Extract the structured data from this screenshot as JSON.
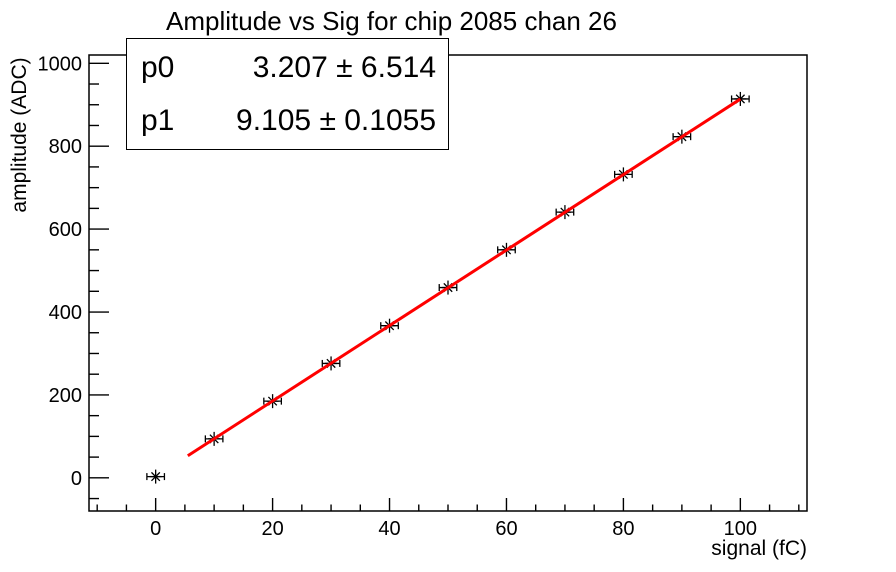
{
  "title": "Amplitude vs Sig for chip 2085 chan 26",
  "stats_box": {
    "rows": [
      {
        "label": "p0",
        "value": "3.207 ± 6.514"
      },
      {
        "label": "p1",
        "value": "9.105 ± 0.1055"
      }
    ]
  },
  "chart_data": {
    "type": "scatter",
    "title": "Amplitude vs Sig for chip 2085 chan 26",
    "xlabel": "signal (fC)",
    "ylabel": "amplitude (ADC)",
    "xlim": [
      -11.4,
      111.4
    ],
    "ylim": [
      -80,
      1020
    ],
    "x": [
      0,
      10,
      20,
      30,
      40,
      50,
      60,
      70,
      80,
      90,
      100
    ],
    "y": [
      3,
      94,
      185,
      276,
      367,
      459,
      550,
      641,
      732,
      823,
      914
    ],
    "x_error": 1.5,
    "x_major_ticks": [
      0,
      20,
      40,
      60,
      80,
      100
    ],
    "x_minor_step": 5,
    "y_major_ticks": [
      0,
      200,
      400,
      600,
      800,
      1000
    ],
    "y_minor_step": 50,
    "grid": false,
    "frame": true,
    "legend_position": "none",
    "marker": "asterisk",
    "marker_color": "#000000",
    "fit_line": {
      "p0": 3.207,
      "p1": 9.105,
      "x_range": [
        5.5,
        100
      ],
      "color": "#ff0000",
      "width": 3
    }
  }
}
